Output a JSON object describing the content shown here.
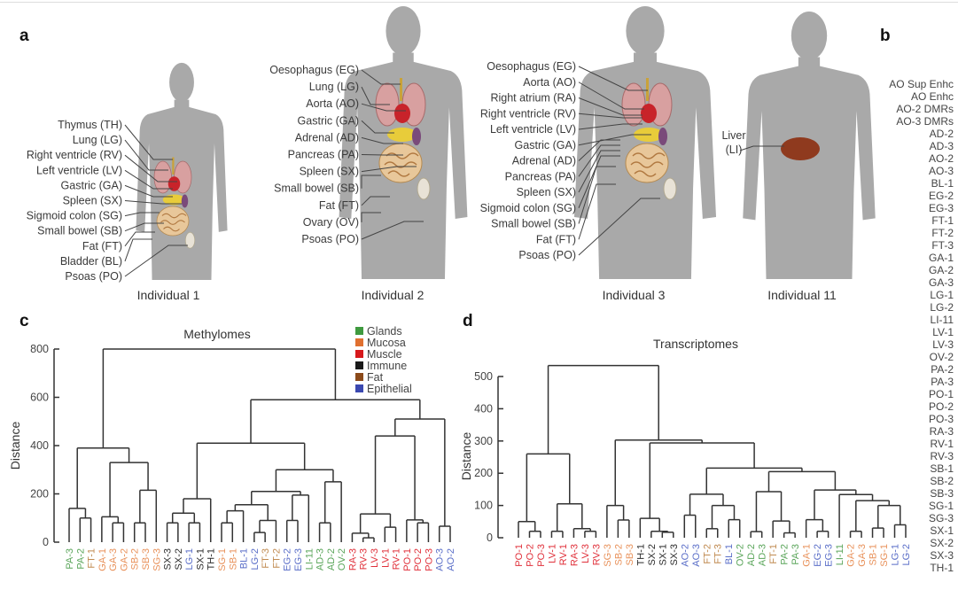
{
  "panel_letters": {
    "a": "a",
    "b": "b",
    "c": "c",
    "d": "d"
  },
  "panel_a": {
    "individuals": [
      {
        "caption": "Individual 1",
        "labels": [
          "Thymus (TH)",
          "Lung (LG)",
          "Right ventricle (RV)",
          "Left ventricle (LV)",
          "Gastric (GA)",
          "Spleen (SX)",
          "Sigmoid colon (SG)",
          "Small bowel (SB)",
          "Fat (FT)",
          "Bladder (BL)",
          "Psoas (PO)"
        ]
      },
      {
        "caption": "Individual 2",
        "labels": [
          "Oesophagus (EG)",
          "Lung (LG)",
          "Aorta (AO)",
          "Gastric (GA)",
          "Adrenal (AD)",
          "Pancreas (PA)",
          "Spleen (SX)",
          "Small bowel (SB)",
          "Fat (FT)",
          "Ovary (OV)",
          "Psoas (PO)"
        ]
      },
      {
        "caption": "Individual 3",
        "labels": [
          "Oesophagus (EG)",
          "Aorta (AO)",
          "Right atrium (RA)",
          "Right ventricle (RV)",
          "Left ventricle (LV)",
          "Gastric (GA)",
          "Adrenal (AD)",
          "Pancreas (PA)",
          "Spleen (SX)",
          "Sigmoid colon (SG)",
          "Small bowel (SB)",
          "Fat (FT)",
          "Psoas (PO)"
        ]
      },
      {
        "caption": "Individual 11",
        "labels": [
          "Liver",
          "(LI)"
        ]
      }
    ],
    "silhouette_color": "#a9a9a9"
  },
  "panel_b": {
    "items": [
      "AO Sup Enhc",
      "AO Enhc",
      "AO-2 DMRs",
      "AO-3 DMRs",
      "AD-2",
      "AD-3",
      "AO-2",
      "AO-3",
      "BL-1",
      "EG-2",
      "EG-3",
      "FT-1",
      "FT-2",
      "FT-3",
      "GA-1",
      "GA-2",
      "GA-3",
      "LG-1",
      "LG-2",
      "LI-11",
      "LV-1",
      "LV-3",
      "OV-2",
      "PA-2",
      "PA-3",
      "PO-1",
      "PO-2",
      "PO-3",
      "RA-3",
      "RV-1",
      "RV-3",
      "SB-1",
      "SB-2",
      "SB-3",
      "SG-1",
      "SG-3",
      "SX-1",
      "SX-2",
      "SX-3",
      "TH-1"
    ]
  },
  "label_colors": {
    "PA": "#5aa55a",
    "LI": "#5aa55a",
    "AD": "#5aa55a",
    "OV": "#5aa55a",
    "FT": "#c08a50",
    "GA": "#e8915a",
    "SB": "#e8915a",
    "SG": "#e8915a",
    "SX": "#2a2a2a",
    "TH": "#2a2a2a",
    "LG": "#5a6ec8",
    "BL": "#5a6ec8",
    "EG": "#5a6ec8",
    "AO": "#5a6ec8",
    "RA": "#e0303a",
    "RV": "#e0303a",
    "LV": "#e0303a",
    "PO": "#e0303a"
  },
  "chart_data": [
    {
      "type": "dendrogram",
      "title": "Methylomes",
      "ylabel": "Distance",
      "ylim": [
        0,
        800
      ],
      "yticks": [
        0,
        200,
        400,
        600,
        800
      ],
      "legend": {
        "placement": "top-right",
        "entries": [
          {
            "label": "Glands",
            "color": "#3f9a3f"
          },
          {
            "label": "Mucosa",
            "color": "#e07030"
          },
          {
            "label": "Muscle",
            "color": "#d7191c"
          },
          {
            "label": "Immune",
            "color": "#1a1a1a"
          },
          {
            "label": "Fat",
            "color": "#8b4a1a"
          },
          {
            "label": "Epithelial",
            "color": "#3b48b0"
          }
        ]
      },
      "tree": {
        "h": 800,
        "c": [
          {
            "h": 390,
            "c": [
              {
                "h": 140,
                "c": [
                  "PA-3",
                  {
                    "h": 100,
                    "c": [
                      "PA-2",
                      "FT-1"
                    ]
                  }
                ]
              },
              {
                "h": 330,
                "c": [
                  {
                    "h": 105,
                    "c": [
                      "GA-1",
                      {
                        "h": 80,
                        "c": [
                          "GA-3",
                          "GA-2"
                        ]
                      }
                    ]
                  },
                  {
                    "h": 215,
                    "c": [
                      {
                        "h": 80,
                        "c": [
                          "SB-2",
                          "SB-3"
                        ]
                      },
                      "SG-3"
                    ]
                  }
                ]
              }
            ]
          },
          {
            "h": 590,
            "c": [
              {
                "h": 410,
                "c": [
                  {
                    "h": 180,
                    "c": [
                      {
                        "h": 120,
                        "c": [
                          {
                            "h": 80,
                            "c": [
                              "SX-3",
                              "SX-2"
                            ]
                          },
                          {
                            "h": 80,
                            "c": [
                              "LG-1",
                              "SX-1"
                            ]
                          }
                        ]
                      },
                      "TH-1"
                    ]
                  },
                  {
                    "h": 300,
                    "c": [
                      {
                        "h": 210,
                        "c": [
                          {
                            "h": 155,
                            "c": [
                              {
                                "h": 130,
                                "c": [
                                  {
                                    "h": 80,
                                    "c": [
                                      "SG-1",
                                      "SB-1"
                                    ]
                                  },
                                  "BL-1"
                                ]
                              },
                              {
                                "h": 90,
                                "c": [
                                  {
                                    "h": 40,
                                    "c": [
                                      "LG-2",
                                      "FT-3"
                                    ]
                                  },
                                  "FT-2"
                                ]
                              }
                            ]
                          },
                          {
                            "h": 195,
                            "c": [
                              {
                                "h": 90,
                                "c": [
                                  "EG-2",
                                  "EG-3"
                                ]
                              },
                              "LI-11"
                            ]
                          }
                        ]
                      },
                      {
                        "h": 250,
                        "c": [
                          {
                            "h": 80,
                            "c": [
                              "AD-3",
                              "AD-2"
                            ]
                          },
                          "OV-2"
                        ]
                      }
                    ]
                  }
                ]
              },
              {
                "h": 510,
                "c": [
                  {
                    "h": 440,
                    "c": [
                      {
                        "h": 117,
                        "c": [
                          {
                            "h": 37,
                            "c": [
                              "RA-3",
                              {
                                "h": 18,
                                "c": [
                                  "RV-3",
                                  "LV-3"
                                ]
                              }
                            ]
                          },
                          {
                            "h": 62,
                            "c": [
                              "LV-1",
                              "RV-1"
                            ]
                          }
                        ]
                      },
                      {
                        "h": 92,
                        "c": [
                          "PO-1",
                          {
                            "h": 80,
                            "c": [
                              "PO-2",
                              "PO-3"
                            ]
                          }
                        ]
                      }
                    ]
                  },
                  {
                    "h": 66,
                    "c": [
                      "AO-3",
                      "AO-2"
                    ]
                  }
                ]
              }
            ]
          }
        ]
      }
    },
    {
      "type": "dendrogram",
      "title": "Transcriptomes",
      "ylabel": "Distance",
      "ylim": [
        0,
        500
      ],
      "yticks": [
        0,
        100,
        200,
        300,
        400,
        500
      ],
      "tree": {
        "h": 534,
        "c": [
          {
            "h": 260,
            "c": [
              {
                "h": 50,
                "c": [
                  "PO-1",
                  {
                    "h": 20,
                    "c": [
                      "PO-2",
                      "PO-3"
                    ]
                  }
                ]
              },
              {
                "h": 105,
                "c": [
                  {
                    "h": 20,
                    "c": [
                      "LV-1",
                      "RV-1"
                    ]
                  },
                  {
                    "h": 28,
                    "c": [
                      "RA-3",
                      {
                        "h": 20,
                        "c": [
                          "LV-3",
                          "RV-3"
                        ]
                      }
                    ]
                  }
                ]
              }
            ]
          },
          {
            "h": 303,
            "c": [
              {
                "h": 100,
                "c": [
                  "SG-3",
                  {
                    "h": 55,
                    "c": [
                      "SB-2",
                      "SB-3"
                    ]
                  }
                ]
              },
              {
                "h": 294,
                "c": [
                  {
                    "h": 60,
                    "c": [
                      "TH-1",
                      {
                        "h": 20,
                        "c": [
                          "SX-2",
                          {
                            "h": 17,
                            "c": [
                              "SX-1",
                              "SX-3"
                            ]
                          }
                        ]
                      }
                    ]
                  },
                  {
                    "h": 216,
                    "c": [
                      {
                        "h": 135,
                        "c": [
                          {
                            "h": 70,
                            "c": [
                              "AO-2",
                              "AO-3"
                            ]
                          },
                          {
                            "h": 100,
                            "c": [
                              {
                                "h": 28,
                                "c": [
                                  "FT-2",
                                  "FT-3"
                                ]
                              },
                              {
                                "h": 56,
                                "c": [
                                  "BL-1",
                                  "OV-2"
                                ]
                              }
                            ]
                          }
                        ]
                      },
                      {
                        "h": 205,
                        "c": [
                          {
                            "h": 143,
                            "c": [
                              {
                                "h": 19,
                                "c": [
                                  "AD-2",
                                  "AD-3"
                                ]
                              },
                              {
                                "h": 52,
                                "c": [
                                  "FT-1",
                                  {
                                    "h": 15,
                                    "c": [
                                      "PA-2",
                                      "PA-3"
                                    ]
                                  }
                                ]
                              }
                            ]
                          },
                          {
                            "h": 148,
                            "c": [
                              {
                                "h": 56,
                                "c": [
                                  "GA-1",
                                  {
                                    "h": 20,
                                    "c": [
                                      "EG-2",
                                      "EG-3"
                                    ]
                                  }
                                ]
                              },
                              {
                                "h": 134,
                                "c": [
                                  "LI-11",
                                  {
                                    "h": 115,
                                    "c": [
                                      {
                                        "h": 20,
                                        "c": [
                                          "GA-2",
                                          "GA-3"
                                        ]
                                      },
                                      {
                                        "h": 100,
                                        "c": [
                                          {
                                            "h": 30,
                                            "c": [
                                              "SB-1",
                                              "SG-1"
                                            ]
                                          },
                                          {
                                            "h": 40,
                                            "c": [
                                              "LG-1",
                                              "LG-2"
                                            ]
                                          }
                                        ]
                                      }
                                    ]
                                  }
                                ]
                              }
                            ]
                          }
                        ]
                      }
                    ]
                  }
                ]
              }
            ]
          }
        ]
      }
    }
  ]
}
